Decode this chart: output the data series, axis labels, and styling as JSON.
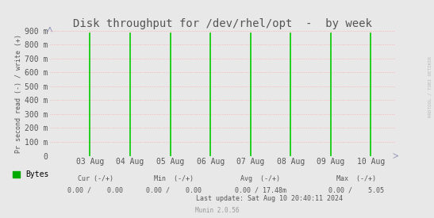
{
  "title": "Disk throughput for /dev/rhel/opt  -  by week",
  "ylabel": "Pr second read (-) / write (+)",
  "bg_color": "#e8e8e8",
  "plot_bg_color": "#e8e8e8",
  "grid_color": "#ffaaaa",
  "spike_color": "#00cc00",
  "baseline_color": "#444444",
  "ylim": [
    0,
    900
  ],
  "yticks": [
    0,
    100,
    200,
    300,
    400,
    500,
    600,
    700,
    800,
    900
  ],
  "ytick_labels": [
    "0",
    "100 m",
    "200 m",
    "300 m",
    "400 m",
    "500 m",
    "600 m",
    "700 m",
    "800 m",
    "900 m"
  ],
  "spike_x": [
    1,
    2,
    3,
    4,
    5,
    6,
    7,
    8
  ],
  "spike_height": 880,
  "xtick_positions": [
    1,
    2,
    3,
    4,
    5,
    6,
    7,
    8
  ],
  "xtick_labels": [
    "03 Aug",
    "04 Aug",
    "05 Aug",
    "06 Aug",
    "07 Aug",
    "08 Aug",
    "09 Aug",
    "10 Aug"
  ],
  "xlim": [
    0.0,
    8.6
  ],
  "side_text": "RRDTOOL / TOBI OETIKER",
  "legend_label": "Bytes",
  "legend_color": "#00aa00",
  "font_color": "#555555",
  "arrow_color": "#9999bb",
  "title_fontsize": 10,
  "tick_fontsize": 7,
  "stats_fontsize": 6,
  "footer_fontsize": 5.5,
  "ylabel_fontsize": 6,
  "stats_col1_header": "Cur (-/+)",
  "stats_col2_header": "Min  (-/+)",
  "stats_col3_header": "Avg  (-/+)",
  "stats_col4_header": "Max  (-/+)",
  "stats_bytes_cur": "0.00 /    0.00",
  "stats_bytes_min": "0.00 /    0.00",
  "stats_bytes_avg": "0.00 / 17.48m",
  "stats_bytes_max": "0.00 /    5.05",
  "last_update": "Last update: Sat Aug 10 20:40:11 2024",
  "footer": "Munin 2.0.56"
}
